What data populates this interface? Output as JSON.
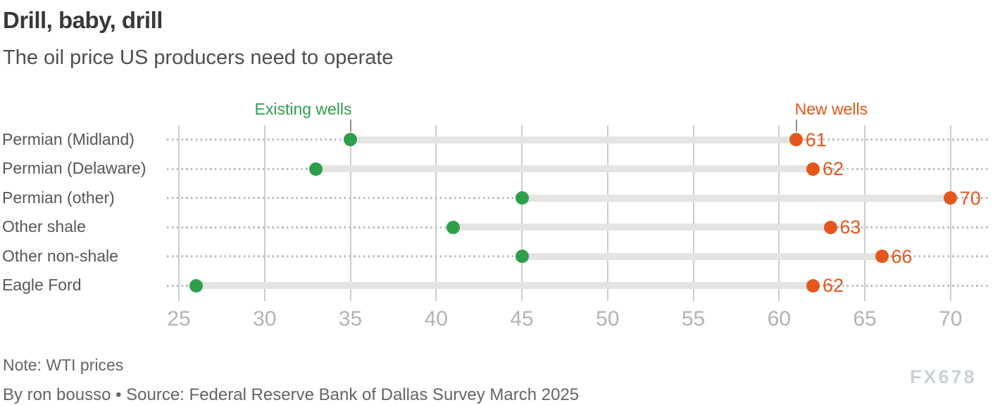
{
  "header": {
    "title": "Drill, baby, drill",
    "subtitle": "The oil price US producers need to operate"
  },
  "chart_data": {
    "type": "scatter",
    "variant": "dumbbell",
    "title": "Drill, baby, drill",
    "subtitle": "The oil price US producers need to operate",
    "categories": [
      "Permian (Midland)",
      "Permian (Delaware)",
      "Permian (other)",
      "Other shale",
      "Other non-shale",
      "Eagle Ford"
    ],
    "series": [
      {
        "name": "Existing wells",
        "color": "#2f9e4a",
        "values": [
          35,
          33,
          45,
          41,
          45,
          26
        ],
        "show_data_labels": false,
        "legend_align": "right"
      },
      {
        "name": "New wells",
        "color": "#e4571c",
        "values": [
          61,
          62,
          70,
          63,
          66,
          62
        ],
        "show_data_labels": true,
        "legend_align": "left"
      }
    ],
    "xlabel": "",
    "ylabel": "",
    "xlim": [
      24.3,
      72.35
    ],
    "xticks": [
      25,
      30,
      35,
      40,
      45,
      50,
      55,
      60,
      65,
      70
    ],
    "grid": "vertical gridlines on, dotted horizontal leader line per category row",
    "legend_position": "inline labels above the first row, each anchored over its first-row dot"
  },
  "style": {
    "existing_color": "#2f9e4a",
    "new_color": "#e4571c",
    "connector_band_color": "#e4e4e2",
    "dotted_line_color": "#bcbcbc",
    "gridline_color": "#cccccb",
    "tick_label_color": "#b3b3b3",
    "category_label_color": "#54575a",
    "legend_tick_color": "#8f8f8f"
  },
  "footer": {
    "note": "Note: WTI prices",
    "byline": "By ron bousso • Source: Federal Reserve Bank of Dallas Survey March 2025",
    "watermark": "FX678"
  }
}
